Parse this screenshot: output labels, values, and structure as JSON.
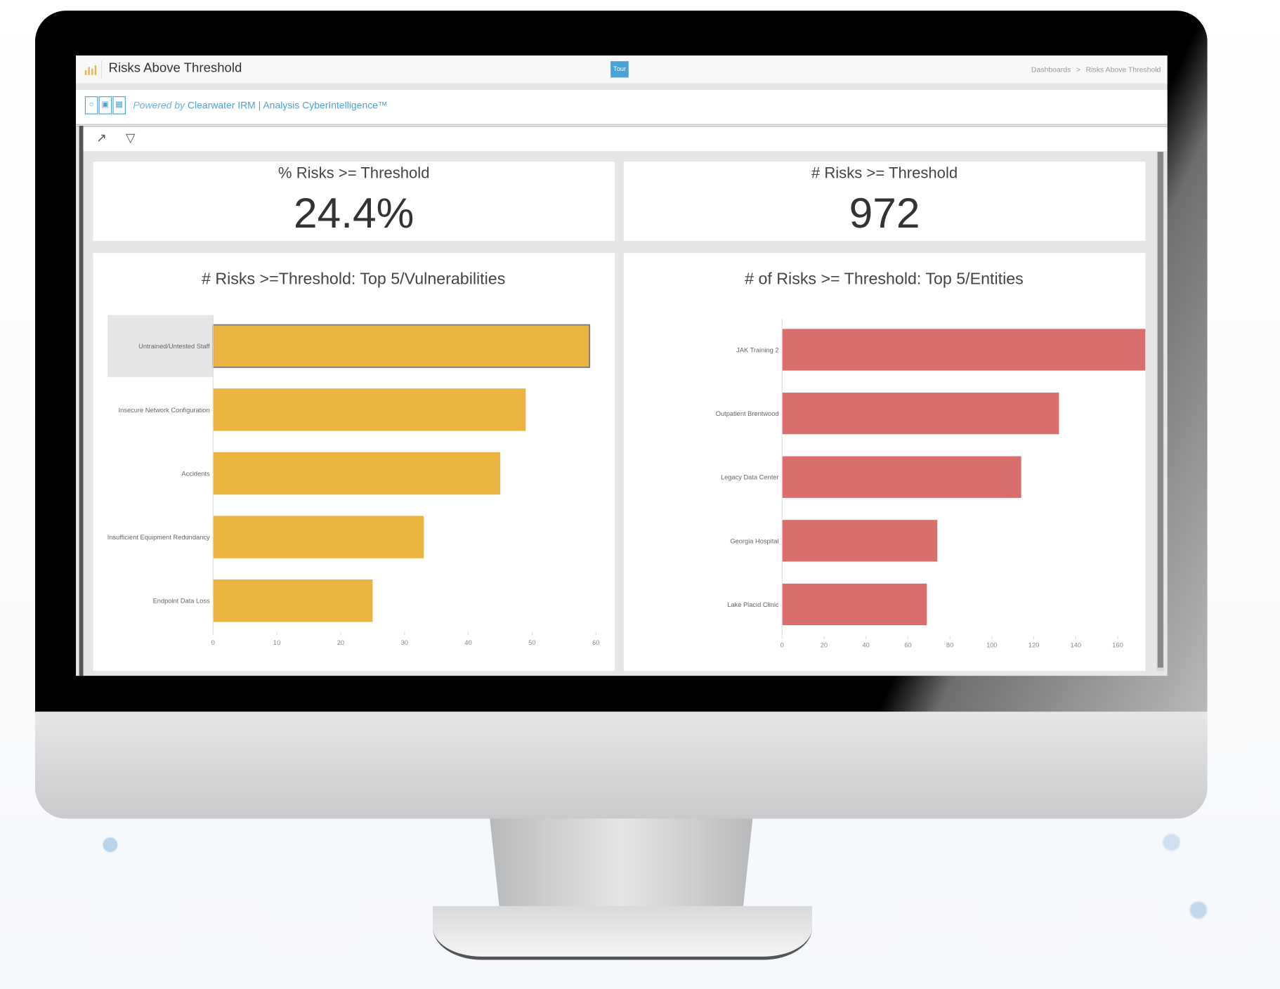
{
  "header": {
    "title": "Risks Above Threshold",
    "tour_label": "Tour",
    "breadcrumb": [
      "Dashboards",
      "Risks Above Threshold"
    ],
    "breadcrumb_sep": ">"
  },
  "powered": {
    "prefix": "Powered by",
    "brand": "Clearwater IRM | Analysis CyberIntelligence™"
  },
  "kpis": [
    {
      "title": "% Risks >= Threshold",
      "value": "24.4%"
    },
    {
      "title": "# Risks >= Threshold",
      "value": "972"
    }
  ],
  "colors": {
    "accent": "#4aa3d8",
    "vuln_bar": "#ebb440",
    "entity_bar": "#d96e6c"
  },
  "chart_data": [
    {
      "type": "bar",
      "orientation": "horizontal",
      "title": "# Risks >=Threshold: Top 5/Vulnerabilities",
      "categories": [
        "Untrained/Untested Staff",
        "Insecure Network Configuration",
        "Accidents",
        "Insufficient Equipment Redundancy",
        "Endpoint Data Loss"
      ],
      "values": [
        59,
        49,
        45,
        33,
        25
      ],
      "xlim": [
        0,
        60
      ],
      "xticks": [
        0,
        10,
        20,
        30,
        40,
        50,
        60
      ],
      "highlighted": "Untrained/Untested Staff",
      "xlabel": "",
      "ylabel": ""
    },
    {
      "type": "bar",
      "orientation": "horizontal",
      "title": "# of Risks >= Threshold: Top 5/Entities",
      "categories": [
        "JAK Training 2",
        "Outpatient Brentwood",
        "Legacy Data Center",
        "Georgia Hospital",
        "Lake Placid Clinic"
      ],
      "values": [
        192,
        132,
        114,
        74,
        69
      ],
      "xlim": [
        0,
        200
      ],
      "xticks": [
        0,
        20,
        40,
        60,
        80,
        100,
        120,
        140,
        160,
        180,
        200
      ],
      "xlabel": "",
      "ylabel": ""
    }
  ]
}
